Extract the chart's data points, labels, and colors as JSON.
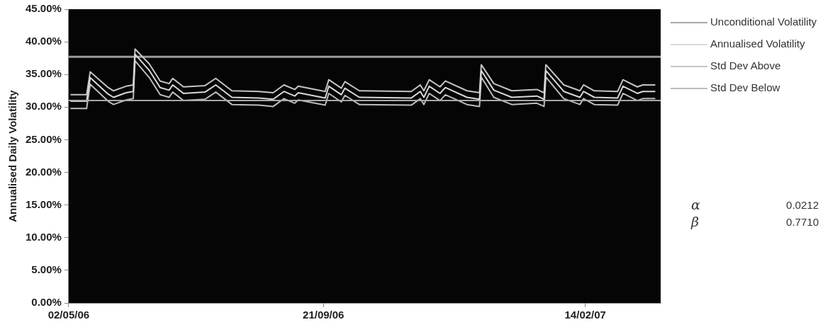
{
  "chart_data": {
    "type": "line",
    "ylabel": "Annualised Daily Volatility",
    "xlim": [
      "2006-05-02",
      "2007-03-28"
    ],
    "xticks": [
      {
        "value": "2006-05-02",
        "label": "02/05/06"
      },
      {
        "value": "2006-09-21",
        "label": "21/09/06"
      },
      {
        "value": "2007-02-14",
        "label": "14/02/07"
      }
    ],
    "ylim": [
      0,
      45
    ],
    "yticks": [
      {
        "value": 0,
        "label": "0.00%"
      },
      {
        "value": 5,
        "label": "5.00%"
      },
      {
        "value": 10,
        "label": "10.00%"
      },
      {
        "value": 15,
        "label": "15.00%"
      },
      {
        "value": 20,
        "label": "20.00%"
      },
      {
        "value": 25,
        "label": "25.00%"
      },
      {
        "value": 30,
        "label": "30.00%"
      },
      {
        "value": 35,
        "label": "35.00%"
      },
      {
        "value": 40,
        "label": "40.00%"
      },
      {
        "value": 45,
        "label": "45.00%"
      }
    ],
    "x": [
      "2006-05-03",
      "2006-05-12",
      "2006-05-14",
      "2006-05-24",
      "2006-05-27",
      "2006-06-03",
      "2006-06-07",
      "2006-06-08",
      "2006-06-16",
      "2006-06-22",
      "2006-06-27",
      "2006-06-29",
      "2006-07-05",
      "2006-07-17",
      "2006-07-23",
      "2006-08-01",
      "2006-08-16",
      "2006-08-24",
      "2006-08-30",
      "2006-09-05",
      "2006-09-07",
      "2006-09-22",
      "2006-09-24",
      "2006-10-01",
      "2006-10-03",
      "2006-10-11",
      "2006-11-09",
      "2006-11-14",
      "2006-11-16",
      "2006-11-19",
      "2006-11-25",
      "2006-11-28",
      "2006-12-10",
      "2006-12-17",
      "2006-12-18",
      "2006-12-25",
      "2007-01-04",
      "2007-01-18",
      "2007-01-22",
      "2007-01-23",
      "2007-02-02",
      "2007-02-11",
      "2007-02-13",
      "2007-02-19",
      "2007-03-04",
      "2007-03-07",
      "2007-03-15",
      "2007-03-18",
      "2007-03-25"
    ],
    "series": [
      {
        "name": "Unconditional Volatility",
        "color": "#a8a8a8",
        "x": [
          "2006-05-02",
          "2007-03-28"
        ],
        "values": [
          31.0,
          31.0
        ]
      },
      {
        "name": "Annualised Volatility",
        "color": "#d8d8d8",
        "values": [
          30.9,
          30.9,
          34.5,
          32.0,
          31.5,
          32.2,
          32.4,
          38.1,
          35.6,
          33.0,
          32.6,
          33.4,
          32.1,
          32.3,
          33.4,
          31.5,
          31.4,
          31.2,
          32.4,
          31.7,
          32.2,
          31.4,
          33.2,
          31.9,
          32.9,
          31.5,
          31.4,
          32.4,
          31.5,
          33.2,
          32.1,
          33.0,
          31.5,
          31.2,
          35.6,
          32.6,
          31.5,
          31.7,
          31.2,
          35.6,
          32.4,
          31.5,
          32.4,
          31.5,
          31.4,
          33.2,
          32.1,
          32.4,
          32.4
        ]
      },
      {
        "name": "Std Dev Above",
        "color": "#c4c4c4",
        "values": [
          31.9,
          31.9,
          35.4,
          33.0,
          32.5,
          33.2,
          33.4,
          38.9,
          36.6,
          34.0,
          33.6,
          34.4,
          33.1,
          33.3,
          34.4,
          32.5,
          32.4,
          32.2,
          33.4,
          32.7,
          33.2,
          32.4,
          34.2,
          32.9,
          33.9,
          32.5,
          32.4,
          33.4,
          32.5,
          34.2,
          33.1,
          34.0,
          32.5,
          32.2,
          36.5,
          33.6,
          32.5,
          32.7,
          32.2,
          36.5,
          33.4,
          32.5,
          33.4,
          32.5,
          32.4,
          34.2,
          33.1,
          33.4,
          33.4
        ]
      },
      {
        "name": "Std Dev Below",
        "color": "#bcbcbc",
        "values": [
          29.8,
          29.8,
          33.5,
          30.9,
          30.4,
          31.1,
          31.3,
          37.1,
          34.5,
          31.9,
          31.5,
          32.3,
          31.0,
          31.2,
          32.3,
          30.4,
          30.3,
          30.1,
          31.3,
          30.6,
          31.1,
          30.3,
          32.1,
          30.8,
          31.8,
          30.4,
          30.3,
          31.3,
          30.4,
          32.1,
          31.0,
          31.9,
          30.4,
          30.1,
          34.6,
          31.5,
          30.4,
          30.6,
          30.1,
          34.6,
          31.3,
          30.4,
          31.3,
          30.4,
          30.3,
          32.1,
          31.0,
          31.3,
          31.3
        ]
      }
    ],
    "ref_lines": [
      {
        "axis": "y",
        "value": 37.7,
        "color": "#9a9a9a"
      }
    ],
    "grid": false,
    "legend": "right",
    "marker": "none",
    "line_style": "solid",
    "annotations": [
      "α",
      "0.0212",
      "β",
      "0.7710"
    ]
  }
}
